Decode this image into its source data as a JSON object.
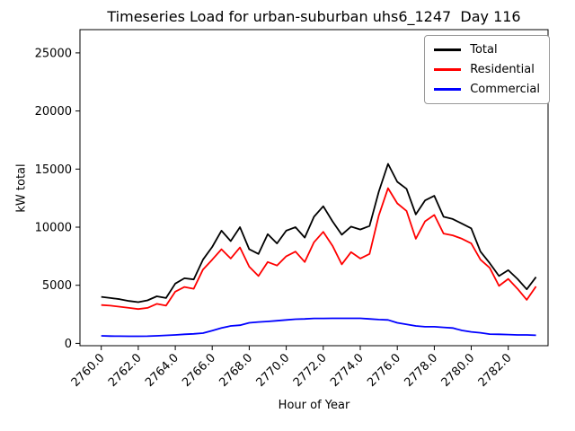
{
  "chart_data": {
    "type": "line",
    "title": "Timeseries Load for urban-suburban uhs6_1247  Day 116",
    "xlabel": "Hour of Year",
    "ylabel": "kW total",
    "grid": false,
    "legend_position": "upper right",
    "xlim": [
      2758.85,
      2784.15
    ],
    "ylim": [
      -200,
      27000
    ],
    "yticks": [
      0,
      5000,
      10000,
      15000,
      20000,
      25000
    ],
    "xticks": [
      2760,
      2762,
      2764,
      2766,
      2768,
      2770,
      2772,
      2774,
      2776,
      2778,
      2780,
      2782
    ],
    "xtick_labels": [
      "2760.0",
      "2762.0",
      "2764.0",
      "2766.0",
      "2768.0",
      "2770.0",
      "2772.0",
      "2774.0",
      "2776.0",
      "2778.0",
      "2780.0",
      "2782.0"
    ],
    "x": [
      2760.0,
      2760.5,
      2761.0,
      2761.5,
      2762.0,
      2762.5,
      2763.0,
      2763.5,
      2764.0,
      2764.5,
      2765.0,
      2765.5,
      2766.0,
      2766.5,
      2767.0,
      2767.5,
      2768.0,
      2768.5,
      2769.0,
      2769.5,
      2770.0,
      2770.5,
      2771.0,
      2771.5,
      2772.0,
      2772.5,
      2773.0,
      2773.5,
      2774.0,
      2774.5,
      2775.0,
      2775.5,
      2776.0,
      2776.5,
      2777.0,
      2777.5,
      2778.0,
      2778.5,
      2779.0,
      2779.5,
      2780.0,
      2780.5,
      2781.0,
      2781.5,
      2782.0,
      2782.5,
      2783.0,
      2783.5
    ],
    "series": [
      {
        "name": "Total",
        "color": "#000000",
        "values": [
          4000,
          3900,
          3800,
          3650,
          3550,
          3700,
          4050,
          3900,
          5150,
          5600,
          5500,
          7200,
          8300,
          9700,
          8800,
          10000,
          8100,
          7700,
          9400,
          8600,
          9700,
          10000,
          9100,
          10900,
          11800,
          10500,
          9350,
          10050,
          9800,
          10100,
          13050,
          15450,
          13900,
          13300,
          11100,
          12300,
          12700,
          10900,
          10700,
          10300,
          9900,
          7900,
          6900,
          5800,
          6300,
          5550,
          4650,
          5700
        ]
      },
      {
        "name": "Residential",
        "color": "#ff0000",
        "values": [
          3300,
          3250,
          3150,
          3050,
          2950,
          3050,
          3400,
          3250,
          4450,
          4850,
          4700,
          6350,
          7200,
          8100,
          7300,
          8250,
          6600,
          5800,
          7000,
          6700,
          7500,
          7900,
          7000,
          8700,
          9600,
          8400,
          6800,
          7850,
          7300,
          7700,
          11000,
          13350,
          12050,
          11400,
          9000,
          10500,
          11050,
          9450,
          9300,
          9000,
          8600,
          7200,
          6500,
          4950,
          5550,
          4700,
          3750,
          4900
        ]
      },
      {
        "name": "Commercial",
        "color": "#0000ff",
        "values": [
          650,
          630,
          620,
          610,
          610,
          620,
          650,
          690,
          730,
          780,
          820,
          880,
          1100,
          1320,
          1500,
          1560,
          1770,
          1840,
          1890,
          1950,
          2020,
          2080,
          2100,
          2150,
          2150,
          2160,
          2160,
          2160,
          2160,
          2100,
          2050,
          2020,
          1770,
          1630,
          1500,
          1430,
          1430,
          1380,
          1320,
          1110,
          990,
          910,
          800,
          780,
          760,
          730,
          730,
          700
        ]
      }
    ]
  }
}
